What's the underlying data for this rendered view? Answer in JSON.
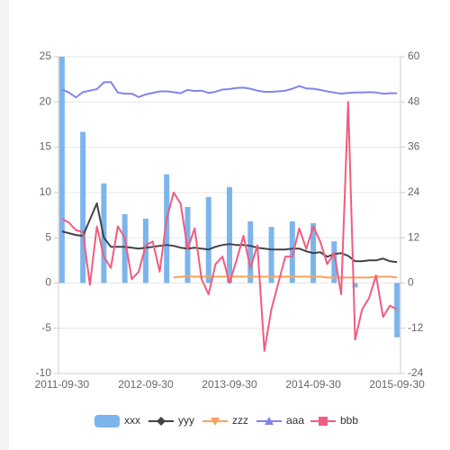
{
  "chart_data": {
    "type": "combo",
    "categories": [
      "2011-09-30",
      null,
      null,
      null,
      null,
      null,
      null,
      null,
      null,
      null,
      null,
      null,
      "2012-09-30",
      null,
      null,
      null,
      null,
      null,
      null,
      null,
      null,
      null,
      null,
      null,
      "2013-09-30",
      null,
      null,
      null,
      null,
      null,
      null,
      null,
      null,
      null,
      null,
      null,
      "2014-09-30",
      null,
      null,
      null,
      null,
      null,
      null,
      null,
      null,
      null,
      null,
      null,
      "2015-09-30"
    ],
    "ylim": [
      -10,
      25
    ],
    "yticks": [
      -10,
      -5,
      0,
      5,
      10,
      15,
      20,
      25
    ],
    "y2lim": [
      -24,
      60
    ],
    "y2ticks": [
      -24,
      -12,
      0,
      12,
      24,
      36,
      48,
      60
    ],
    "grid": true,
    "legend": "bottom",
    "series": [
      {
        "name": "xxx",
        "type": "bar",
        "color": "#7cb5ec",
        "values": [
          25,
          null,
          null,
          16.7,
          null,
          null,
          11,
          null,
          null,
          7.6,
          null,
          null,
          7.1,
          null,
          null,
          12,
          null,
          null,
          8.4,
          null,
          null,
          9.5,
          null,
          null,
          10.6,
          null,
          null,
          6.8,
          null,
          null,
          6.2,
          null,
          null,
          6.8,
          null,
          null,
          6.6,
          null,
          null,
          4.6,
          null,
          null,
          -0.5,
          null,
          null,
          null,
          null,
          null,
          -6
        ]
      },
      {
        "name": "yyy",
        "type": "line",
        "color": "#434348",
        "values": [
          5.7,
          5.5,
          5.3,
          5.2,
          7,
          8.8,
          5,
          4,
          4,
          4,
          3.9,
          3.8,
          3.9,
          4,
          4.1,
          4.2,
          4.1,
          3.9,
          3.8,
          3.9,
          3.8,
          3.7,
          4,
          4.2,
          4.3,
          4.2,
          4.2,
          4.1,
          3.9,
          3.8,
          3.7,
          3.7,
          3.7,
          3.8,
          3.8,
          3.5,
          3.3,
          3.4,
          2.9,
          3.2,
          3.3,
          3,
          2.4,
          2.4,
          2.5,
          2.5,
          2.7,
          2.4,
          2.3
        ]
      },
      {
        "name": "zzz",
        "type": "line",
        "color": "#f7a35c",
        "values": [
          null,
          null,
          null,
          null,
          null,
          null,
          null,
          null,
          null,
          null,
          null,
          null,
          null,
          null,
          null,
          null,
          0.6,
          0.7,
          0.7,
          0.7,
          0.7,
          0.7,
          0.7,
          0.7,
          0.7,
          0.7,
          0.7,
          0.7,
          0.7,
          0.7,
          0.7,
          0.7,
          0.7,
          0.7,
          0.7,
          0.7,
          0.7,
          0.7,
          0.6,
          0.6,
          0.6,
          0.6,
          0.6,
          0.6,
          0.6,
          0.7,
          0.7,
          0.7,
          0.6
        ]
      },
      {
        "name": "aaa",
        "type": "line",
        "axis": "y2",
        "color": "#8085e9",
        "values": [
          51.3,
          50.5,
          49.2,
          50.6,
          51,
          51.4,
          53.2,
          53.3,
          50.5,
          50.2,
          50.2,
          49.3,
          50,
          50.4,
          50.8,
          50.8,
          50.6,
          50.3,
          51.2,
          50.9,
          51,
          50.4,
          50.7,
          51.3,
          51.4,
          51.7,
          51.8,
          51.5,
          51,
          50.7,
          50.7,
          50.8,
          51,
          51.5,
          52.2,
          51.6,
          51.5,
          51.2,
          50.8,
          50.5,
          50.2,
          50.4,
          50.5,
          50.5,
          50.6,
          50.5,
          50.2,
          50.3,
          50.3
        ]
      },
      {
        "name": "bbb",
        "type": "line",
        "axis": "y2",
        "color": "#f15c80",
        "values": [
          17,
          16,
          14,
          13.5,
          -0.5,
          15,
          7,
          4,
          15,
          12,
          1,
          3,
          10,
          11,
          3,
          17,
          24,
          21,
          9,
          14.5,
          1,
          -3,
          5,
          7,
          0,
          6,
          12.5,
          4,
          10,
          -18,
          -7,
          0,
          7,
          7,
          14.5,
          9,
          15,
          11,
          5,
          8,
          -3,
          48,
          -15,
          -7,
          -4,
          2,
          -9,
          -6,
          -7
        ]
      }
    ]
  }
}
